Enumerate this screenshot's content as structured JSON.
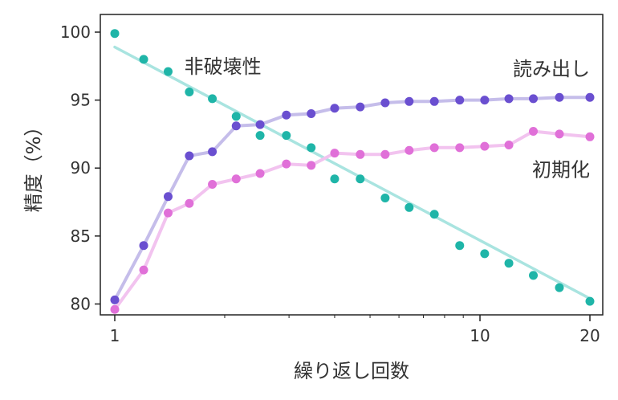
{
  "chart_data": {
    "type": "scatter",
    "xlabel": "繰り返し回数",
    "ylabel": "精度（%）",
    "xlim": [
      1,
      20
    ],
    "x_scale": "log",
    "ylim": [
      79.2,
      101.3
    ],
    "x_ticks": [
      1,
      10,
      20
    ],
    "x_tick_labels": [
      "1",
      "10",
      "20"
    ],
    "y_ticks": [
      80,
      85,
      90,
      95,
      100
    ],
    "y_tick_labels": [
      "80",
      "85",
      "90",
      "95",
      "100"
    ],
    "grid": false,
    "annotations": [
      {
        "text": "非破壊性",
        "series": "非破壊性"
      },
      {
        "text": "読み出し",
        "series": "読み出し"
      },
      {
        "text": "初期化",
        "series": "初期化"
      }
    ],
    "series": [
      {
        "name": "非破壊性",
        "color": "#1fb5a8",
        "fit_color": "#a9e4e0",
        "fit_line": [
          [
            1,
            98.9
          ],
          [
            20,
            80.4
          ]
        ],
        "x": [
          1,
          1.2,
          1.4,
          1.6,
          1.85,
          2.15,
          2.5,
          2.95,
          3.45,
          4,
          4.7,
          5.5,
          6.4,
          7.5,
          8.8,
          10.3,
          12,
          14,
          16.5,
          20
        ],
        "y": [
          99.9,
          98.0,
          97.1,
          95.6,
          95.1,
          93.8,
          92.4,
          92.4,
          91.5,
          89.2,
          89.2,
          87.8,
          87.1,
          86.6,
          84.3,
          83.7,
          83.0,
          82.1,
          81.2,
          80.2
        ]
      },
      {
        "name": "読み出し",
        "color": "#6a4fd0",
        "line_color": "#c5bdea",
        "x": [
          1,
          1.2,
          1.4,
          1.6,
          1.85,
          2.15,
          2.5,
          2.95,
          3.45,
          4,
          4.7,
          5.5,
          6.4,
          7.5,
          8.8,
          10.3,
          12,
          14,
          16.5,
          20
        ],
        "y": [
          80.3,
          84.3,
          87.9,
          90.9,
          91.2,
          93.1,
          93.2,
          93.9,
          94.0,
          94.4,
          94.5,
          94.8,
          94.9,
          94.9,
          95.0,
          95.0,
          95.1,
          95.1,
          95.2,
          95.2
        ]
      },
      {
        "name": "初期化",
        "color": "#e070d8",
        "line_color": "#f2c3ef",
        "x": [
          1,
          1.2,
          1.4,
          1.6,
          1.85,
          2.15,
          2.5,
          2.95,
          3.45,
          4,
          4.7,
          5.5,
          6.4,
          7.5,
          8.8,
          10.3,
          12,
          14,
          16.5,
          20
        ],
        "y": [
          79.6,
          82.5,
          86.7,
          87.4,
          88.8,
          89.2,
          89.6,
          90.3,
          90.2,
          91.1,
          91.0,
          91.0,
          91.3,
          91.5,
          91.5,
          91.6,
          91.7,
          92.7,
          92.5,
          92.3
        ]
      }
    ]
  }
}
